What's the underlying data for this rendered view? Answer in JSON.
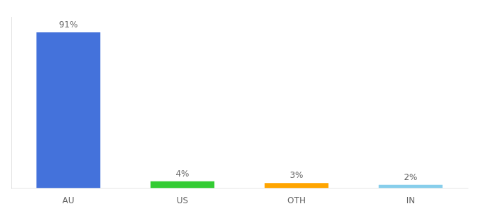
{
  "chart_data": {
    "type": "bar",
    "categories": [
      "AU",
      "US",
      "OTH",
      "IN"
    ],
    "values": [
      91,
      4,
      3,
      2
    ],
    "value_labels": [
      "91%",
      "4%",
      "3%",
      "2%"
    ],
    "colors": [
      "#4472db",
      "#33cc33",
      "#ffa500",
      "#87ceeb"
    ],
    "ylim": [
      0,
      100
    ],
    "yticks": [],
    "grid": false,
    "data_labels": true,
    "tick_labels": "x"
  }
}
